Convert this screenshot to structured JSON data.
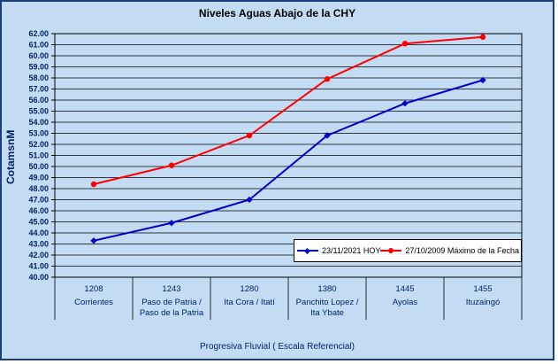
{
  "colors": {
    "background": "#C3DCF3",
    "frame_border": "#1B3E7E",
    "grid": "#000000",
    "axis_text": "#002366",
    "legend_bg": "#FFFFFF"
  },
  "chart_data": {
    "type": "line",
    "title": "Niveles Aguas Abajo de la CHY",
    "ylabel": "CotamsnM",
    "xlabel": "Progresiva Fluvial ( Escala Referencial)",
    "ylim": [
      40,
      62
    ],
    "ytick_step": 1,
    "ytick_decimals": 2,
    "grid": true,
    "legend_position": "inside-bottom-right",
    "categories": [
      {
        "km": "1208",
        "name_lines": [
          "Corrientes"
        ]
      },
      {
        "km": "1243",
        "name_lines": [
          "Paso de Patria /",
          "Paso de la Patria"
        ]
      },
      {
        "km": "1280",
        "name_lines": [
          "Ita Cora / Itatí"
        ]
      },
      {
        "km": "1380",
        "name_lines": [
          "Panchito Lopez /",
          "Ita Ybate"
        ]
      },
      {
        "km": "1445",
        "name_lines": [
          "Ayolas"
        ]
      },
      {
        "km": "1455",
        "name_lines": [
          "Ituzaingó"
        ]
      }
    ],
    "series": [
      {
        "name": "23/11/2021 HOY",
        "color": "#0000CC",
        "marker": "diamond",
        "values": [
          43.3,
          44.9,
          47.0,
          52.8,
          55.7,
          57.8
        ]
      },
      {
        "name": "27/10/2009 Máximo de la Fecha",
        "color": "#FF0000",
        "marker": "circle",
        "values": [
          48.4,
          50.1,
          52.8,
          57.9,
          61.1,
          61.7
        ]
      }
    ]
  }
}
